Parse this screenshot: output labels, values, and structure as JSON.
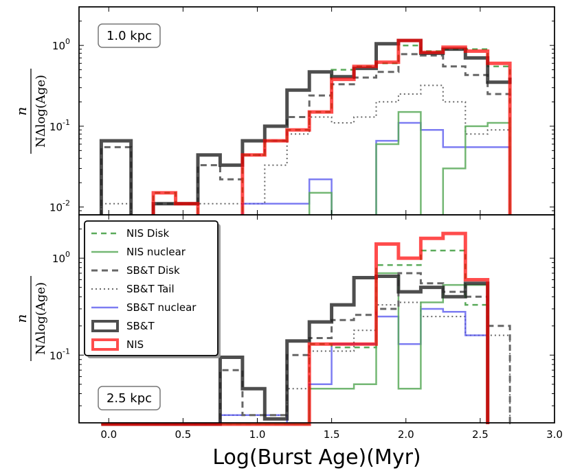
{
  "chart_data": {
    "type": "step-histogram",
    "xlabel": "Log(Burst Age)(Myr)",
    "x_ticks": [
      "0.0",
      "0.5",
      "1.0",
      "1.5",
      "2.0",
      "2.5",
      "3.0"
    ],
    "xlim": [
      -0.2,
      3.0
    ],
    "ylabel_numerator": "n",
    "ylabel_denominator": "NΔlog(Age)",
    "bin_edges": [
      -0.05,
      0.15,
      0.3,
      0.45,
      0.6,
      0.75,
      0.9,
      1.05,
      1.2,
      1.35,
      1.5,
      1.65,
      1.8,
      1.95,
      2.1,
      2.25,
      2.4,
      2.55,
      2.7
    ],
    "legend": {
      "placement": "upper-left of lower panel",
      "entries": [
        {
          "label": "NIS Disk",
          "series": "nis_disk"
        },
        {
          "label": "NIS nuclear",
          "series": "nis_nuclear"
        },
        {
          "label": "SB&T Disk",
          "series": "sbt_disk"
        },
        {
          "label": "SB&T Tail",
          "series": "sbt_tail"
        },
        {
          "label": "SB&T nuclear",
          "series": "sbt_nuclear"
        },
        {
          "label": "SB&T",
          "series": "sbt"
        },
        {
          "label": "NIS",
          "series": "nis"
        }
      ]
    },
    "series_styles": {
      "sbt": {
        "color": "#222222",
        "opacity": 0.8,
        "width": 5,
        "dash": ""
      },
      "nis": {
        "color": "#ff0000",
        "opacity": 0.7,
        "width": 5,
        "dash": ""
      },
      "nis_disk": {
        "color": "#5aaa5a",
        "opacity": 1,
        "width": 2.5,
        "dash": "8,6"
      },
      "nis_nuclear": {
        "color": "#5aaa5a",
        "opacity": 0.85,
        "width": 2.5,
        "dash": ""
      },
      "sbt_disk": {
        "color": "#666666",
        "opacity": 1,
        "width": 3,
        "dash": "9,6"
      },
      "sbt_tail": {
        "color": "#666666",
        "opacity": 1,
        "width": 2,
        "dash": "2,4"
      },
      "sbt_nuclear": {
        "color": "#5050ee",
        "opacity": 0.75,
        "width": 2.5,
        "dash": ""
      }
    },
    "panels": [
      {
        "label": "1.0 kpc",
        "ylim": [
          0.008,
          3.0
        ],
        "yticks": [
          {
            "base": "10",
            "exp": "-2",
            "value": 0.01
          },
          {
            "base": "10",
            "exp": "-1",
            "value": 0.1
          },
          {
            "base": "10",
            "exp": "0",
            "value": 1
          }
        ],
        "series": {
          "sbt_disk": [
            0.055,
            null,
            0.011,
            0.011,
            0.033,
            0.022,
            0.044,
            0.066,
            0.13,
            0.24,
            0.33,
            0.4,
            0.47,
            0.78,
            0.75,
            0.55,
            0.43,
            0.25,
            0.2
          ],
          "sbt_tail": [
            0.011,
            null,
            null,
            null,
            0.011,
            0.011,
            0.011,
            0.033,
            0.08,
            0.13,
            0.11,
            0.13,
            0.2,
            0.25,
            0.32,
            0.2,
            0.08,
            0.09,
            0.09
          ],
          "sbt_nuclear": [
            null,
            null,
            null,
            null,
            null,
            null,
            0.011,
            0.011,
            0.011,
            0.022,
            null,
            null,
            0.066,
            0.11,
            0.09,
            0.055,
            0.055,
            0.055
          ],
          "nis_disk": [
            null,
            null,
            0.015,
            0.011,
            null,
            null,
            0.044,
            0.066,
            0.09,
            0.15,
            0.5,
            0.55,
            0.6,
            1.0,
            0.85,
            0.9,
            0.9,
            0.55
          ],
          "nis_nuclear": [
            null,
            null,
            null,
            null,
            null,
            null,
            null,
            null,
            null,
            0.015,
            null,
            null,
            0.06,
            0.15,
            null,
            0.03,
            0.1,
            0.11
          ],
          "sbt": [
            0.066,
            null,
            0.011,
            0.011,
            0.044,
            0.033,
            0.066,
            0.1,
            0.28,
            0.47,
            0.41,
            0.52,
            1.05,
            1.15,
            0.8,
            0.9,
            0.7,
            0.35,
            0.4
          ],
          "nis": [
            null,
            null,
            0.015,
            0.011,
            null,
            null,
            0.044,
            0.066,
            0.09,
            0.15,
            0.38,
            0.55,
            0.62,
            1.15,
            0.82,
            0.95,
            0.85,
            0.6
          ]
        }
      },
      {
        "label": "2.5 kpc",
        "ylim": [
          0.02,
          2.8
        ],
        "yticks": [
          {
            "base": "10",
            "exp": "-1",
            "value": 0.1
          },
          {
            "base": "10",
            "exp": "0",
            "value": 1
          }
        ],
        "series": {
          "sbt_disk": [
            null,
            null,
            null,
            null,
            null,
            0.07,
            0.024,
            0.024,
            0.1,
            0.15,
            0.23,
            0.26,
            0.3,
            0.7,
            0.55,
            0.45,
            0.4,
            0.2
          ],
          "sbt_tail": [
            null,
            null,
            null,
            null,
            null,
            0.024,
            0.024,
            0.024,
            0.045,
            0.11,
            0.11,
            0.18,
            0.33,
            0.35,
            0.25,
            0.25,
            0.16,
            0.16
          ],
          "sbt_nuclear": [
            null,
            null,
            null,
            null,
            null,
            0.024,
            0.024,
            0.024,
            null,
            0.05,
            0.13,
            0.13,
            0.25,
            0.13,
            0.3,
            0.28,
            0.16
          ],
          "nis_disk": [
            null,
            null,
            null,
            null,
            null,
            null,
            null,
            null,
            null,
            0.13,
            0.12,
            0.12,
            0.85,
            0.85,
            1.2,
            1.2,
            0.33
          ],
          "nis_nuclear": [
            null,
            null,
            null,
            null,
            null,
            null,
            null,
            null,
            null,
            0.045,
            0.045,
            0.05,
            0.7,
            0.045,
            0.35,
            0.53,
            0.53
          ],
          "sbt": [
            null,
            null,
            null,
            null,
            null,
            0.095,
            0.045,
            0.022,
            0.14,
            0.22,
            0.33,
            0.63,
            0.65,
            0.45,
            0.5,
            0.4,
            0.55
          ],
          "nis": [
            null,
            null,
            null,
            null,
            null,
            null,
            null,
            null,
            null,
            0.13,
            0.13,
            0.13,
            1.4,
            1.0,
            1.6,
            1.8,
            0.6
          ]
        }
      }
    ]
  }
}
